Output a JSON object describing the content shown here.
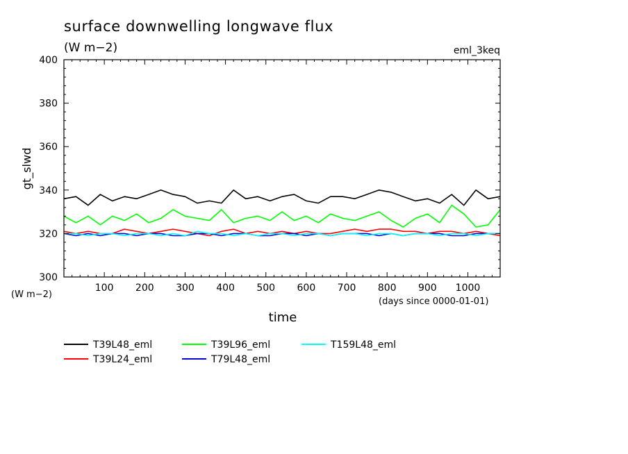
{
  "chart_data": {
    "type": "line",
    "title": "surface downwelling longwave flux",
    "subtitle": "(W m−2)",
    "experiment_label": "eml_3keq",
    "ylabel": "gt_slwd",
    "y_unit_label": "(W m−2)",
    "xlabel": "time",
    "x_unit_label": "(days since 0000-01-01)",
    "xlim": [
      0,
      1080
    ],
    "ylim": [
      300,
      400
    ],
    "x_ticks": [
      100,
      200,
      300,
      400,
      500,
      600,
      700,
      800,
      900,
      1000
    ],
    "y_ticks": [
      300,
      320,
      340,
      360,
      380,
      400
    ],
    "grid": false,
    "legend_position": "bottom-left",
    "x": [
      0,
      30,
      60,
      90,
      120,
      150,
      180,
      210,
      240,
      270,
      300,
      330,
      360,
      390,
      420,
      450,
      480,
      510,
      540,
      570,
      600,
      630,
      660,
      690,
      720,
      750,
      780,
      810,
      840,
      870,
      900,
      930,
      960,
      990,
      1020,
      1050,
      1080
    ],
    "series": [
      {
        "name": "T39L48_eml",
        "color": "#000000",
        "values": [
          336,
          337,
          333,
          338,
          335,
          337,
          336,
          338,
          340,
          338,
          337,
          334,
          335,
          334,
          340,
          336,
          337,
          335,
          337,
          338,
          335,
          334,
          337,
          337,
          336,
          338,
          340,
          339,
          337,
          335,
          336,
          334,
          338,
          333,
          340,
          336,
          337
        ]
      },
      {
        "name": "T39L24_eml",
        "color": "#ff0000",
        "values": [
          321,
          320,
          321,
          320,
          320,
          322,
          321,
          320,
          321,
          322,
          321,
          320,
          319,
          321,
          322,
          320,
          321,
          320,
          321,
          320,
          321,
          320,
          320,
          321,
          322,
          321,
          322,
          322,
          321,
          321,
          320,
          321,
          321,
          320,
          321,
          320,
          319
        ]
      },
      {
        "name": "T39L96_eml",
        "color": "#00ff00",
        "values": [
          328,
          325,
          328,
          324,
          328,
          326,
          329,
          325,
          327,
          331,
          328,
          327,
          326,
          331,
          325,
          327,
          328,
          326,
          330,
          326,
          328,
          325,
          329,
          327,
          326,
          328,
          330,
          326,
          323,
          327,
          329,
          325,
          333,
          329,
          323,
          324,
          331
        ]
      },
      {
        "name": "T79L48_eml",
        "color": "#0000cc",
        "values": [
          320,
          319,
          320,
          319,
          320,
          320,
          319,
          320,
          320,
          319,
          319,
          320,
          320,
          319,
          320,
          320,
          319,
          319,
          320,
          320,
          319,
          320,
          319,
          320,
          320,
          320,
          319,
          320,
          319,
          320,
          320,
          320,
          319,
          319,
          320,
          320,
          320
        ]
      },
      {
        "name": "T159L48_eml",
        "color": "#00ffff",
        "values": [
          320,
          320,
          319,
          320,
          320,
          319,
          320,
          320,
          319,
          320,
          319,
          321,
          320,
          320,
          319,
          320,
          319,
          320,
          320,
          319,
          320,
          320,
          319,
          320,
          320,
          319,
          320,
          320,
          319,
          320,
          320,
          319,
          320,
          320,
          319,
          320,
          320
        ]
      }
    ]
  }
}
